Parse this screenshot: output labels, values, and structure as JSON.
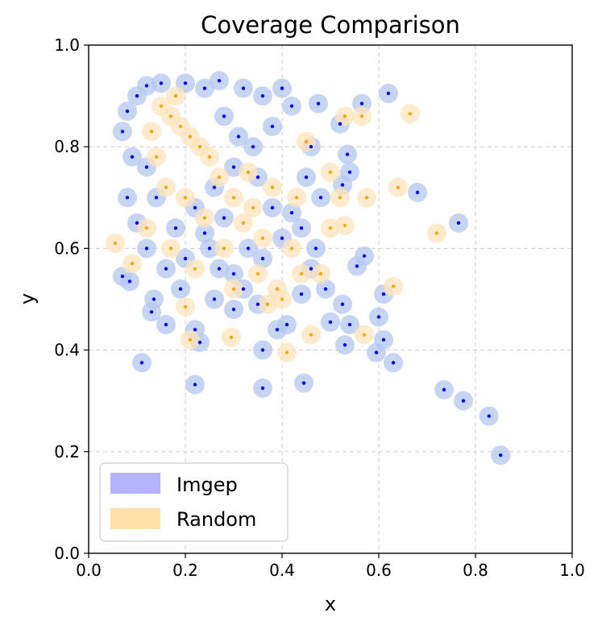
{
  "chart_data": {
    "type": "scatter",
    "title": "Coverage Comparison",
    "xlabel": "x",
    "ylabel": "y",
    "xlim": [
      0.0,
      1.0
    ],
    "ylim": [
      0.0,
      1.0
    ],
    "xticks": [
      "0.0",
      "0.2",
      "0.4",
      "0.6",
      "0.8",
      "1.0"
    ],
    "yticks": [
      "0.0",
      "0.2",
      "0.4",
      "0.6",
      "0.8",
      "1.0"
    ],
    "grid": true,
    "legend_position": "lower-left",
    "series": [
      {
        "name": "Imgep",
        "point_color": "#0000ff",
        "coverage_color": "#b3c7f0",
        "legend_color": "#b3b3ff",
        "points": [
          [
            0.62,
            0.905
          ],
          [
            0.565,
            0.885
          ],
          [
            0.475,
            0.885
          ],
          [
            0.52,
            0.845
          ],
          [
            0.68,
            0.71
          ],
          [
            0.765,
            0.65
          ],
          [
            0.535,
            0.785
          ],
          [
            0.54,
            0.75
          ],
          [
            0.525,
            0.725
          ],
          [
            0.57,
            0.585
          ],
          [
            0.555,
            0.565
          ],
          [
            0.61,
            0.51
          ],
          [
            0.6,
            0.465
          ],
          [
            0.61,
            0.42
          ],
          [
            0.63,
            0.375
          ],
          [
            0.595,
            0.395
          ],
          [
            0.53,
            0.41
          ],
          [
            0.5,
            0.455
          ],
          [
            0.54,
            0.45
          ],
          [
            0.525,
            0.49
          ],
          [
            0.49,
            0.52
          ],
          [
            0.46,
            0.56
          ],
          [
            0.44,
            0.51
          ],
          [
            0.41,
            0.45
          ],
          [
            0.39,
            0.44
          ],
          [
            0.36,
            0.4
          ],
          [
            0.445,
            0.335
          ],
          [
            0.36,
            0.325
          ],
          [
            0.22,
            0.332
          ],
          [
            0.11,
            0.375
          ],
          [
            0.22,
            0.44
          ],
          [
            0.23,
            0.415
          ],
          [
            0.16,
            0.45
          ],
          [
            0.13,
            0.475
          ],
          [
            0.135,
            0.5
          ],
          [
            0.19,
            0.52
          ],
          [
            0.085,
            0.535
          ],
          [
            0.07,
            0.545
          ],
          [
            0.26,
            0.5
          ],
          [
            0.3,
            0.48
          ],
          [
            0.35,
            0.49
          ],
          [
            0.32,
            0.52
          ],
          [
            0.735,
            0.322
          ],
          [
            0.775,
            0.3
          ],
          [
            0.828,
            0.27
          ],
          [
            0.852,
            0.193
          ],
          [
            0.47,
            0.6
          ],
          [
            0.44,
            0.64
          ],
          [
            0.42,
            0.67
          ],
          [
            0.48,
            0.7
          ],
          [
            0.45,
            0.74
          ],
          [
            0.4,
            0.62
          ],
          [
            0.38,
            0.68
          ],
          [
            0.36,
            0.58
          ],
          [
            0.33,
            0.6
          ],
          [
            0.3,
            0.55
          ],
          [
            0.27,
            0.56
          ],
          [
            0.25,
            0.6
          ],
          [
            0.2,
            0.58
          ],
          [
            0.16,
            0.56
          ],
          [
            0.12,
            0.6
          ],
          [
            0.1,
            0.65
          ],
          [
            0.08,
            0.7
          ],
          [
            0.09,
            0.78
          ],
          [
            0.07,
            0.83
          ],
          [
            0.08,
            0.87
          ],
          [
            0.1,
            0.9
          ],
          [
            0.12,
            0.92
          ],
          [
            0.15,
            0.925
          ],
          [
            0.2,
            0.925
          ],
          [
            0.24,
            0.915
          ],
          [
            0.27,
            0.93
          ],
          [
            0.32,
            0.915
          ],
          [
            0.36,
            0.9
          ],
          [
            0.4,
            0.915
          ],
          [
            0.42,
            0.88
          ],
          [
            0.38,
            0.84
          ],
          [
            0.34,
            0.8
          ],
          [
            0.3,
            0.76
          ],
          [
            0.26,
            0.72
          ],
          [
            0.22,
            0.68
          ],
          [
            0.18,
            0.64
          ],
          [
            0.14,
            0.7
          ],
          [
            0.12,
            0.76
          ],
          [
            0.28,
            0.86
          ],
          [
            0.31,
            0.82
          ],
          [
            0.35,
            0.74
          ],
          [
            0.28,
            0.66
          ],
          [
            0.24,
            0.63
          ],
          [
            0.46,
            0.8
          ]
        ]
      },
      {
        "name": "Random",
        "point_color": "#ffa500",
        "coverage_color": "#fde3bb",
        "legend_color": "#ffe1a8",
        "points": [
          [
            0.665,
            0.865
          ],
          [
            0.64,
            0.72
          ],
          [
            0.72,
            0.63
          ],
          [
            0.575,
            0.7
          ],
          [
            0.63,
            0.525
          ],
          [
            0.57,
            0.43
          ],
          [
            0.53,
            0.645
          ],
          [
            0.53,
            0.86
          ],
          [
            0.565,
            0.86
          ],
          [
            0.055,
            0.61
          ],
          [
            0.09,
            0.57
          ],
          [
            0.2,
            0.485
          ],
          [
            0.21,
            0.42
          ],
          [
            0.295,
            0.425
          ],
          [
            0.41,
            0.395
          ],
          [
            0.37,
            0.49
          ],
          [
            0.46,
            0.43
          ],
          [
            0.5,
            0.64
          ],
          [
            0.45,
            0.81
          ],
          [
            0.5,
            0.75
          ],
          [
            0.52,
            0.7
          ],
          [
            0.48,
            0.55
          ],
          [
            0.39,
            0.52
          ],
          [
            0.42,
            0.6
          ],
          [
            0.32,
            0.65
          ],
          [
            0.27,
            0.74
          ],
          [
            0.25,
            0.78
          ],
          [
            0.23,
            0.8
          ],
          [
            0.21,
            0.82
          ],
          [
            0.19,
            0.84
          ],
          [
            0.17,
            0.86
          ],
          [
            0.15,
            0.88
          ],
          [
            0.18,
            0.9
          ],
          [
            0.13,
            0.83
          ],
          [
            0.14,
            0.78
          ],
          [
            0.16,
            0.72
          ],
          [
            0.2,
            0.7
          ],
          [
            0.24,
            0.66
          ],
          [
            0.3,
            0.7
          ],
          [
            0.34,
            0.68
          ],
          [
            0.36,
            0.62
          ],
          [
            0.28,
            0.6
          ],
          [
            0.22,
            0.56
          ],
          [
            0.17,
            0.6
          ],
          [
            0.12,
            0.64
          ],
          [
            0.33,
            0.75
          ],
          [
            0.38,
            0.72
          ],
          [
            0.43,
            0.7
          ],
          [
            0.44,
            0.55
          ],
          [
            0.4,
            0.5
          ],
          [
            0.35,
            0.55
          ],
          [
            0.3,
            0.52
          ]
        ]
      }
    ]
  }
}
